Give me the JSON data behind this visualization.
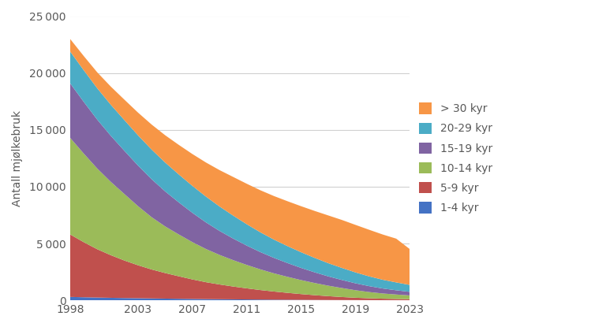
{
  "years": [
    1998,
    1999,
    2000,
    2001,
    2002,
    2003,
    2004,
    2005,
    2006,
    2007,
    2008,
    2009,
    2010,
    2011,
    2012,
    2013,
    2014,
    2015,
    2016,
    2017,
    2018,
    2019,
    2020,
    2021,
    2022,
    2023
  ],
  "series": {
    "1-4 kyr": [
      300,
      270,
      245,
      220,
      200,
      185,
      165,
      150,
      135,
      120,
      105,
      95,
      85,
      75,
      65,
      55,
      48,
      40,
      33,
      27,
      22,
      18,
      15,
      13,
      11,
      10
    ],
    "5-9 kyr": [
      5500,
      4850,
      4250,
      3750,
      3300,
      2900,
      2550,
      2250,
      1980,
      1720,
      1490,
      1300,
      1130,
      980,
      840,
      720,
      610,
      510,
      420,
      340,
      270,
      210,
      165,
      130,
      110,
      90
    ],
    "10-14 kyr": [
      8500,
      7800,
      7100,
      6450,
      5850,
      5200,
      4600,
      4100,
      3680,
      3280,
      2920,
      2600,
      2320,
      2060,
      1820,
      1600,
      1410,
      1230,
      1070,
      920,
      790,
      660,
      550,
      460,
      390,
      330
    ],
    "15-19 kyr": [
      4800,
      4550,
      4300,
      4050,
      3800,
      3570,
      3340,
      3080,
      2820,
      2580,
      2340,
      2110,
      1900,
      1700,
      1520,
      1360,
      1210,
      1070,
      940,
      820,
      710,
      610,
      520,
      440,
      375,
      315
    ],
    "20-29 kyr": [
      2800,
      2780,
      2760,
      2730,
      2700,
      2660,
      2610,
      2540,
      2460,
      2370,
      2270,
      2150,
      2020,
      1880,
      1740,
      1610,
      1490,
      1380,
      1270,
      1160,
      1060,
      960,
      860,
      770,
      690,
      610
    ],
    "> 30 kyr": [
      1100,
      1250,
      1400,
      1600,
      1800,
      2000,
      2200,
      2400,
      2600,
      2800,
      3000,
      3200,
      3400,
      3560,
      3700,
      3830,
      3950,
      4050,
      4130,
      4200,
      4220,
      4180,
      4100,
      3980,
      3850,
      3150
    ]
  },
  "colors": {
    "1-4 kyr": "#4472C4",
    "5-9 kyr": "#C0504D",
    "10-14 kyr": "#9BBB59",
    "15-19 kyr": "#8064A2",
    "20-29 kyr": "#4BACC6",
    "> 30 kyr": "#F79646"
  },
  "ylabel": "Antall mjølkebruk",
  "ylim": [
    0,
    25000
  ],
  "yticks": [
    0,
    5000,
    10000,
    15000,
    20000,
    25000
  ],
  "xticks": [
    1998,
    2003,
    2007,
    2011,
    2015,
    2019,
    2023
  ],
  "background_color": "#ffffff",
  "grid_color": "#d0d0d0"
}
